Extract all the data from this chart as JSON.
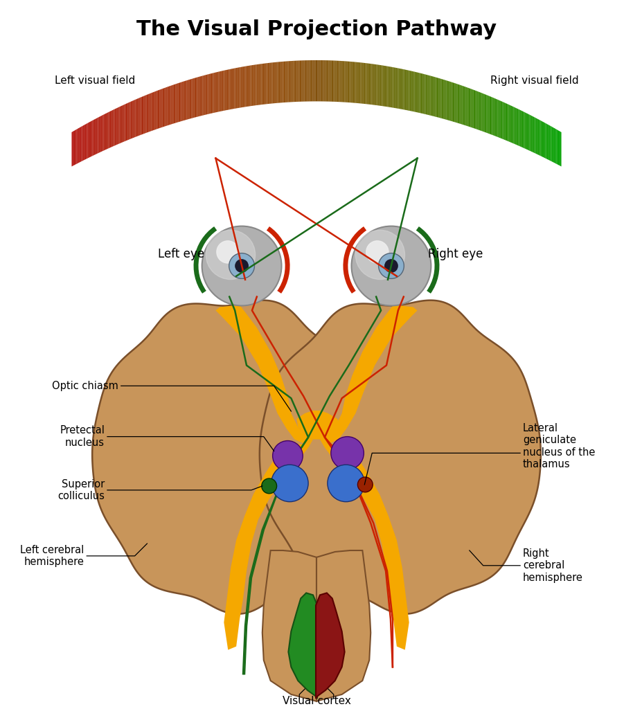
{
  "title": "The Visual Projection Pathway",
  "title_fontsize": 22,
  "title_fontweight": "bold",
  "bg_color": "#ffffff",
  "brain_color": "#C8955A",
  "brain_edge_color": "#7A4F2A",
  "optic_nerve_color": "#F5A800",
  "left_visual_label": "Left visual field",
  "right_visual_label": "Right visual field",
  "left_eye_label": "Left eye",
  "right_eye_label": "Right eye",
  "optic_chiasm_label": "Optic chiasm",
  "pretectal_label": "Pretectal\nnucleus",
  "superior_col_label": "Superior\ncolliculus",
  "left_cerebral_label": "Left cerebral\nhemisphere",
  "lateral_gen_label": "Lateral\ngeniculate\nnucleus of the\nthalamus",
  "right_cerebral_label": "Right\ncerebral\nhemisphere",
  "visual_cortex_label": "Visual cortex",
  "red_color": "#CC2200",
  "green_color": "#1A6B1A",
  "blue_color": "#3A6FCC",
  "purple_color": "#7733AA"
}
